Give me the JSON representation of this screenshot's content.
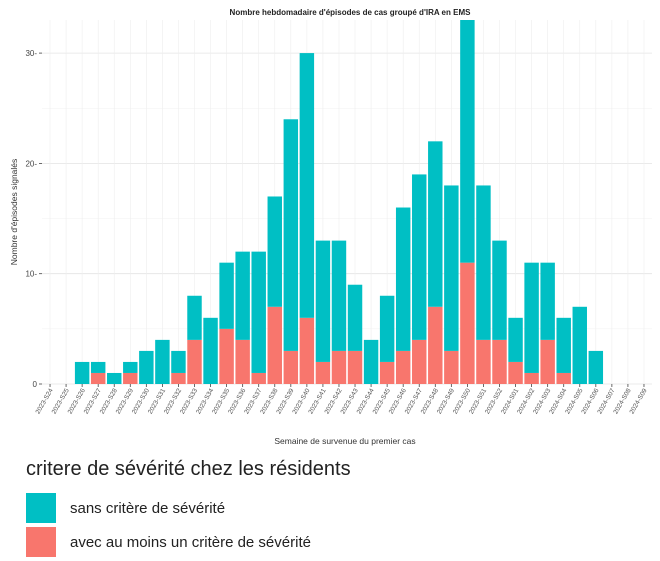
{
  "chart_data": {
    "type": "bar",
    "stacked": true,
    "title": "Nombre hebdomadaire d'épisodes de cas groupé d'IRA en EMS",
    "xlabel": "Semaine de survenue du premier cas",
    "ylabel": "Nombre d'épisodes signalés",
    "ylim": [
      0,
      33
    ],
    "yticks": [
      0,
      10,
      20,
      30
    ],
    "grid": true,
    "legend_position": "bottom",
    "categories": [
      "2023-S24",
      "2023-S25",
      "2023-S26",
      "2023-S27",
      "2023-S28",
      "2023-S29",
      "2023-S30",
      "2023-S31",
      "2023-S32",
      "2023-S33",
      "2023-S34",
      "2023-S35",
      "2023-S36",
      "2023-S37",
      "2023-S38",
      "2023-S39",
      "2023-S40",
      "2023-S41",
      "2023-S42",
      "2023-S43",
      "2023-S44",
      "2023-S45",
      "2023-S46",
      "2023-S47",
      "2023-S48",
      "2023-S49",
      "2023-S50",
      "2023-S51",
      "2023-S52",
      "2024-S01",
      "2024-S02",
      "2024-S03",
      "2024-S04",
      "2024-S05",
      "2024-S06",
      "2024-S07",
      "2024-S08",
      "2024-S09"
    ],
    "series": [
      {
        "name": "avec au moins un critère de sévérité",
        "color": "#F8766D",
        "values": [
          0,
          0,
          0,
          1,
          0,
          1,
          0,
          0,
          1,
          4,
          0,
          5,
          4,
          1,
          7,
          3,
          6,
          2,
          3,
          3,
          0,
          2,
          3,
          4,
          7,
          3,
          11,
          4,
          4,
          2,
          1,
          4,
          1,
          0,
          0,
          0,
          0,
          0
        ]
      },
      {
        "name": "sans critère de sévérité",
        "color": "#00BFC4",
        "values": [
          0,
          0,
          2,
          1,
          1,
          1,
          3,
          4,
          2,
          4,
          6,
          6,
          8,
          11,
          10,
          21,
          24,
          11,
          10,
          6,
          4,
          6,
          13,
          15,
          15,
          15,
          22,
          14,
          9,
          4,
          10,
          7,
          5,
          7,
          3,
          0,
          0,
          0
        ]
      }
    ]
  },
  "legend": {
    "title": "critere de sévérité chez les résidents",
    "items": [
      {
        "label": "sans critère de sévérité",
        "color": "#00BFC4"
      },
      {
        "label": "avec au moins un critère de sévérité",
        "color": "#F8766D"
      }
    ]
  }
}
